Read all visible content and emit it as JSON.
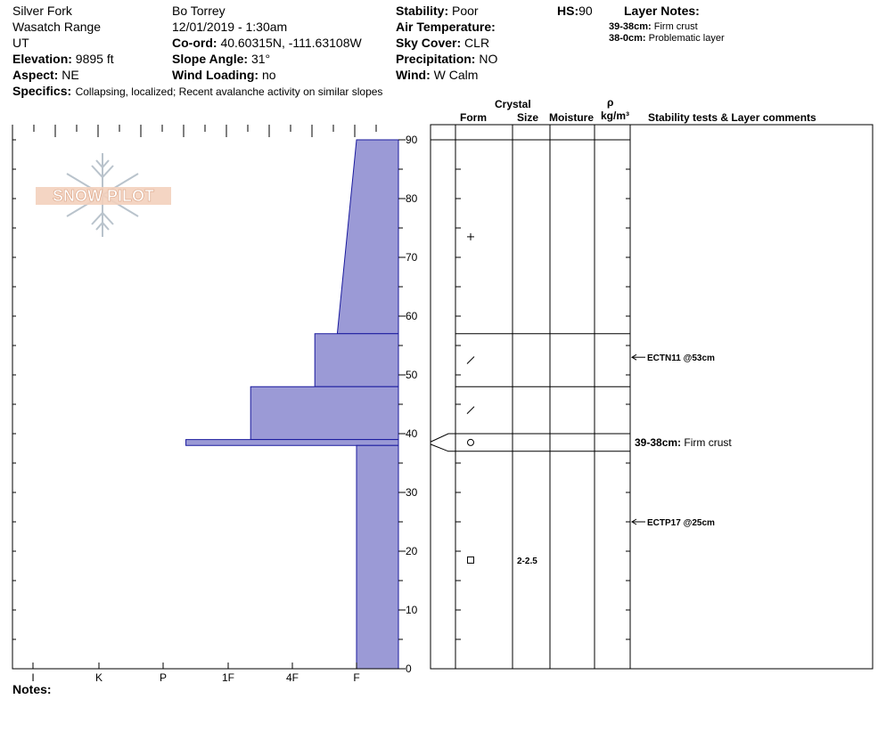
{
  "header": {
    "location": "Silver Fork",
    "range": "Wasatch Range",
    "state": "UT",
    "elevation_label": "Elevation:",
    "elevation": "9895 ft",
    "aspect_label": "Aspect:",
    "aspect": "NE",
    "observer": "Bo Torrey",
    "datetime": "12/01/2019 - 1:30am",
    "coord_label": "Co-ord:",
    "coord": "40.60315N, -111.63108W",
    "slope_label": "Slope Angle:",
    "slope": "31°",
    "wind_loading_label": "Wind Loading:",
    "wind_loading": "no",
    "stability_label": "Stability:",
    "stability": "Poor",
    "air_temp_label": "Air Temperature:",
    "air_temp": "",
    "sky_label": "Sky Cover:",
    "sky": "CLR",
    "precip_label": "Precipitation:",
    "precip": "NO",
    "wind_label": "Wind:",
    "wind": "W Calm",
    "hs_label": "HS:",
    "hs": "90",
    "layer_notes_label": "Layer Notes:",
    "layer_notes": [
      {
        "range": "39-38cm:",
        "text": "Firm crust"
      },
      {
        "range": "38-0cm:",
        "text": "Problematic layer"
      }
    ],
    "specifics_label": "Specifics:",
    "specifics": "Collapsing, localized;  Recent avalanche activity on similar slopes"
  },
  "logo_text": "SNOW PILOT",
  "notes_label": "Notes:",
  "columns": {
    "crystal": "Crystal",
    "form": "Form",
    "size": "Size",
    "moisture": "Moisture",
    "rho": "ρ",
    "density_unit": "kg/m³",
    "stability": "Stability tests & Layer comments"
  },
  "chart_data": {
    "type": "area",
    "title": "",
    "ylabel": "",
    "ylim": [
      0,
      90
    ],
    "yticks": [
      0,
      10,
      20,
      30,
      40,
      50,
      60,
      70,
      80,
      90
    ],
    "hardness_ticks": [
      "I",
      "K",
      "P",
      "1F",
      "4F",
      "F"
    ],
    "hardness_note": "hardness index: F=1, 4F=2, 1F=3, P=4, K=5, I=6",
    "hardness_profile": [
      {
        "top": 90,
        "bottom": 57,
        "hardness_top": 1,
        "hardness_bottom": 1.3
      },
      {
        "top": 57,
        "bottom": 48,
        "hardness_top": 1.65,
        "hardness_bottom": 1.65
      },
      {
        "top": 48,
        "bottom": 39,
        "hardness_top": 2.65,
        "hardness_bottom": 2.65
      },
      {
        "top": 39,
        "bottom": 38,
        "hardness_top": 3.65,
        "hardness_bottom": 3.65
      },
      {
        "top": 38,
        "bottom": 0,
        "hardness_top": 1,
        "hardness_bottom": 1
      }
    ],
    "layer_boundaries": [
      90,
      57,
      48,
      40,
      37
    ],
    "crystal_forms": [
      {
        "depth": 73.5,
        "symbol": "plus"
      },
      {
        "depth": 52.5,
        "symbol": "slash"
      },
      {
        "depth": 44,
        "symbol": "slash"
      },
      {
        "depth": 38.5,
        "symbol": "circle"
      },
      {
        "depth": 18.5,
        "symbol": "square"
      }
    ],
    "crystal_sizes": [
      {
        "depth": 18.5,
        "label": "2-2.5"
      }
    ],
    "stability_tests": [
      {
        "depth": 53,
        "label": "ECTN11 @53cm"
      },
      {
        "depth": 25,
        "label": "ECTP17 @25cm"
      }
    ],
    "layer_comments": [
      {
        "depth": 38.5,
        "range": "39-38cm:",
        "text": "Firm crust"
      }
    ],
    "fill_color": "#9b9ad6",
    "edge_color": "#1a1a9e"
  }
}
